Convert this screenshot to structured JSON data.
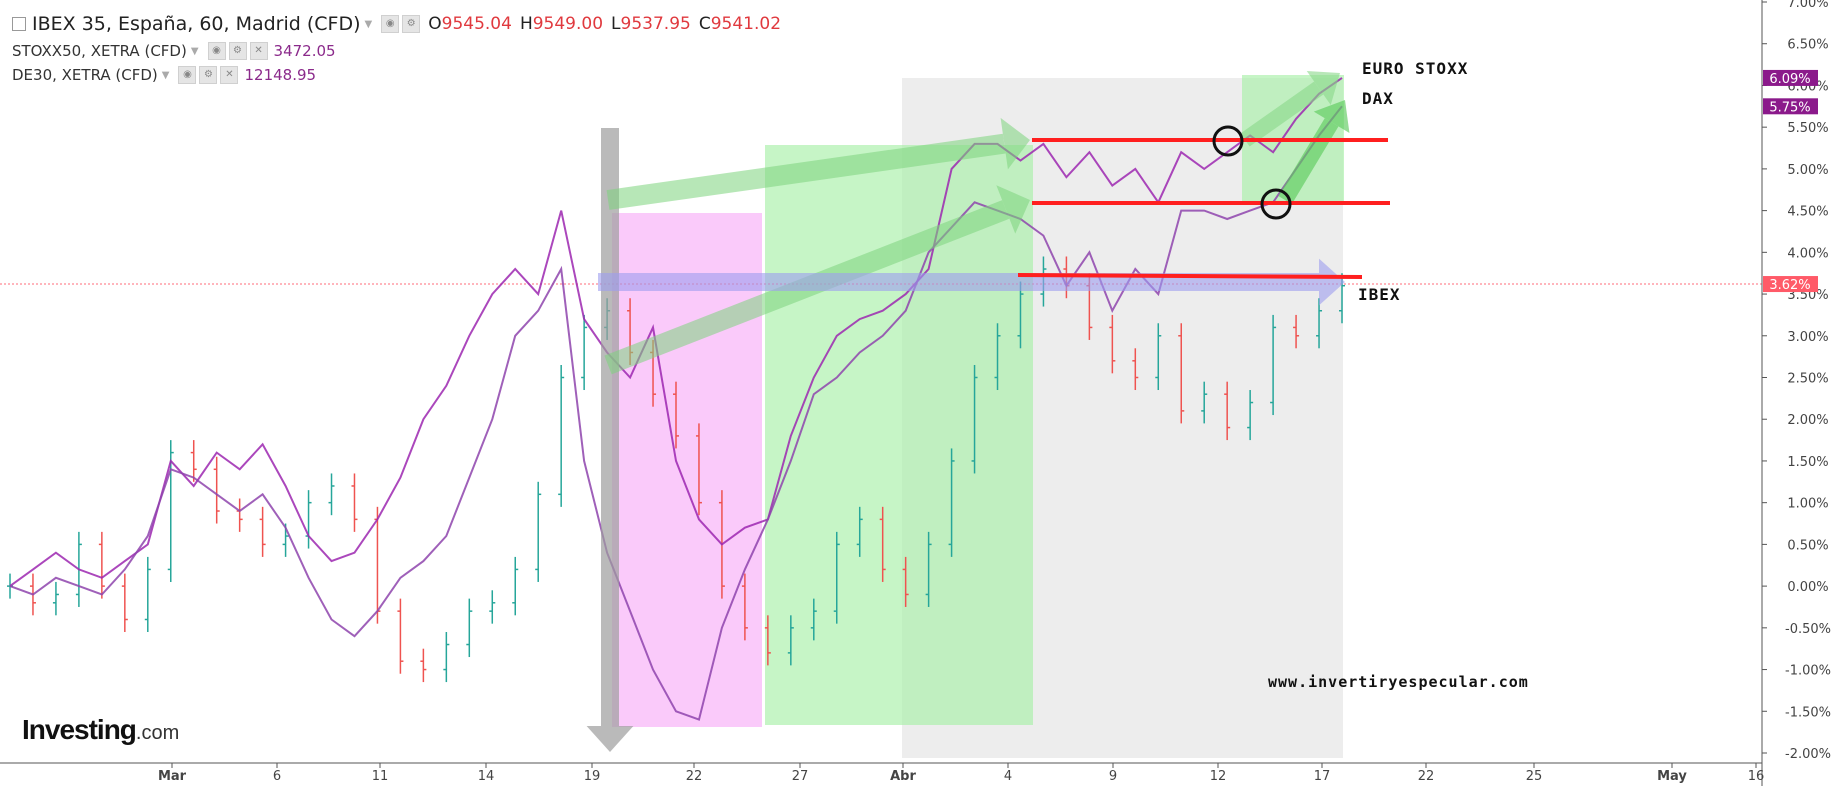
{
  "header": {
    "title": "IBEX 35, España, 60, Madrid (CFD)",
    "ohlc": {
      "o_label": "O",
      "o": "9545.04",
      "h_label": "H",
      "h": "9549.00",
      "l_label": "L",
      "l": "9537.95",
      "c_label": "C",
      "c": "9541.02"
    },
    "overlays": [
      {
        "name": "STOXX50, XETRA (CFD)",
        "value": "3472.05"
      },
      {
        "name": "DE30, XETRA (CFD)",
        "value": "12148.95"
      }
    ]
  },
  "annotations": {
    "euro_stoxx": "EURO STOXX",
    "dax": "DAX",
    "ibex": "IBEX",
    "website": "www.invertiryespecular.com"
  },
  "logo": {
    "main": "Investing",
    "suffix": ".com"
  },
  "colors": {
    "up": "#26a69a",
    "down": "#ef5350",
    "overlay": "#9c27b0",
    "overlay2": "#8e44ad",
    "magenta_zone": "#f8b8f8",
    "green_zone": "#a8f0a8",
    "grey_zone": "#d6d6d6",
    "red_line": "#ff1f1f",
    "price_line": "#ff6b7a"
  },
  "chart_data": {
    "type": "line",
    "title": "IBEX 35, España, 60, Madrid (CFD)",
    "y_unit": "%",
    "ylim": [
      -2.0,
      7.0
    ],
    "y_ticks": [
      "7.00%",
      "6.50%",
      "6.00%",
      "5.50%",
      "5.00%",
      "4.50%",
      "4.00%",
      "3.50%",
      "3.00%",
      "2.50%",
      "2.00%",
      "1.50%",
      "1.00%",
      "0.50%",
      "0.00%",
      "-0.50%",
      "-1.00%",
      "-1.50%",
      "-2.00%"
    ],
    "x_ticks": [
      "Mar",
      "6",
      "11",
      "14",
      "19",
      "22",
      "27",
      "Abr",
      "4",
      "9",
      "12",
      "17",
      "22",
      "25",
      "May",
      "16"
    ],
    "last_values": [
      {
        "label": "6.09%",
        "series": "STOXX50, XETRA (CFD)",
        "value": 6.09
      },
      {
        "label": "5.75%",
        "series": "DE30, XETRA (CFD)",
        "value": 5.75
      },
      {
        "label": "3.62%",
        "series": "IBEX 35, España, 60, Madrid (CFD)",
        "value": 3.62
      }
    ],
    "series": [
      {
        "name": "IBEX 35, España, 60, Madrid (CFD)",
        "style": "ohlc-bars",
        "values": [
          0.0,
          -0.2,
          -0.1,
          0.5,
          0.0,
          -0.4,
          0.2,
          1.6,
          1.4,
          0.9,
          0.8,
          0.5,
          0.6,
          1.0,
          1.2,
          0.8,
          -0.3,
          -0.9,
          -1.0,
          -0.7,
          -0.3,
          -0.2,
          0.2,
          1.1,
          2.5,
          3.1,
          3.3,
          2.8,
          2.3,
          1.8,
          1.0,
          0.0,
          -0.5,
          -0.8,
          -0.5,
          -0.3,
          0.5,
          0.8,
          0.2,
          -0.1,
          0.5,
          1.5,
          2.5,
          3.0,
          3.5,
          3.8,
          3.6,
          3.1,
          2.7,
          2.5,
          3.0,
          2.1,
          2.3,
          1.9,
          2.2,
          3.1,
          3.0,
          3.3,
          3.6
        ]
      },
      {
        "name": "STOXX50, XETRA (CFD)",
        "style": "line",
        "values": [
          0.0,
          0.2,
          0.4,
          0.2,
          0.1,
          0.3,
          0.5,
          1.5,
          1.2,
          1.6,
          1.4,
          1.7,
          1.2,
          0.6,
          0.3,
          0.4,
          0.8,
          1.3,
          2.0,
          2.4,
          3.0,
          3.5,
          3.8,
          3.5,
          4.5,
          3.2,
          2.8,
          2.5,
          3.1,
          1.5,
          0.8,
          0.5,
          0.7,
          0.8,
          1.8,
          2.5,
          3.0,
          3.2,
          3.3,
          3.5,
          3.8,
          5.0,
          5.3,
          5.3,
          5.1,
          5.3,
          4.9,
          5.2,
          4.8,
          5.0,
          4.6,
          5.2,
          5.0,
          5.2,
          5.4,
          5.2,
          5.6,
          5.9,
          6.09
        ]
      },
      {
        "name": "DE30, XETRA (CFD)",
        "style": "line",
        "values": [
          0.0,
          -0.1,
          0.1,
          0.0,
          -0.1,
          0.2,
          0.6,
          1.4,
          1.3,
          1.1,
          0.9,
          1.1,
          0.7,
          0.1,
          -0.4,
          -0.6,
          -0.3,
          0.1,
          0.3,
          0.6,
          1.3,
          2.0,
          3.0,
          3.3,
          3.8,
          1.5,
          0.4,
          -0.3,
          -1.0,
          -1.5,
          -1.6,
          -0.5,
          0.2,
          0.8,
          1.5,
          2.3,
          2.5,
          2.8,
          3.0,
          3.3,
          4.0,
          4.3,
          4.6,
          4.5,
          4.4,
          4.2,
          3.6,
          4.0,
          3.3,
          3.8,
          3.5,
          4.5,
          4.5,
          4.4,
          4.5,
          4.6,
          5.0,
          5.4,
          5.75
        ]
      }
    ],
    "legend": "top-left",
    "grid": false
  }
}
